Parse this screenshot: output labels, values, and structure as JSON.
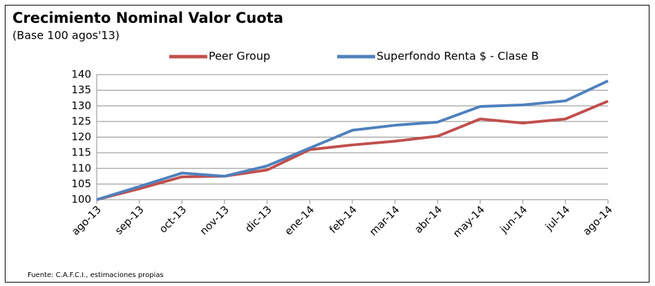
{
  "chart_data": {
    "type": "line",
    "title": "Crecimiento Nominal Valor Cuota",
    "subtitle": "(Base 100 agos'13)",
    "source": "Fuente: C.A.F.C.I., estimaciones propias",
    "categories": [
      "ago-13",
      "sep-13",
      "oct-13",
      "nov-13",
      "dic-13",
      "ene-14",
      "feb-14",
      "mar-14",
      "abr-14",
      "may-14",
      "jun-14",
      "jul-14",
      "ago-14"
    ],
    "series": [
      {
        "name": "Peer Group",
        "color": "#c0504d",
        "values": [
          100,
          103.5,
          107.3,
          107.5,
          109.5,
          116,
          117.5,
          118.7,
          120.3,
          125.8,
          124.5,
          125.8,
          131.5
        ]
      },
      {
        "name": "Superfondo Renta $ - Clase B",
        "color": "#4f81bd",
        "values": [
          100,
          104.2,
          108.5,
          107.5,
          110.8,
          116.5,
          122.2,
          123.8,
          124.8,
          129.8,
          130.3,
          131.6,
          138
        ]
      }
    ],
    "ylim": [
      100,
      140
    ],
    "yticks": [
      100,
      105,
      110,
      115,
      120,
      125,
      130,
      135,
      140
    ],
    "grid": true,
    "legend": "top"
  }
}
